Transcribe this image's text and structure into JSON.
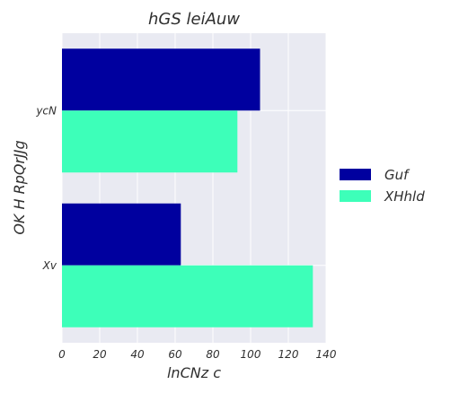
{
  "chart_data": {
    "type": "bar",
    "orientation": "horizontal",
    "title": "hGS leiAuw",
    "xlabel": "lnCNz c",
    "ylabel": "OK H RpQrJJg",
    "categories": [
      "ycN",
      "Xv"
    ],
    "series": [
      {
        "name": "Guf",
        "color": "#00009f",
        "values": [
          105,
          63
        ]
      },
      {
        "name": "XHhld",
        "color": "#3dffb9",
        "values": [
          93,
          133
        ]
      }
    ],
    "xlim": [
      0,
      140
    ],
    "xticks": [
      0,
      20,
      40,
      60,
      80,
      100,
      120,
      140
    ],
    "grid": true,
    "legend_position": "right",
    "background": "#e9eaf2"
  }
}
